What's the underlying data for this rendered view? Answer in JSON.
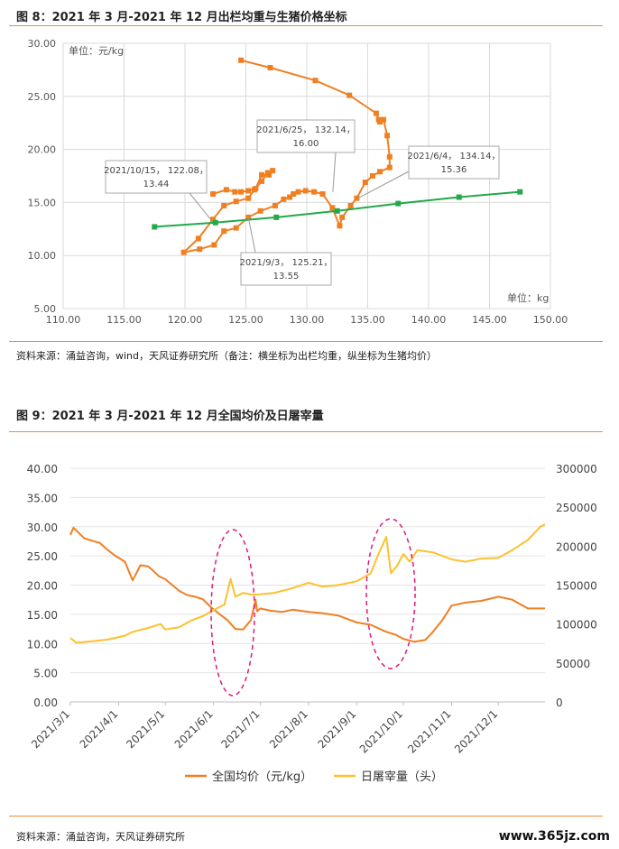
{
  "figure8": {
    "title": "图 8：2021 年 3 月-2021 年 12 月出栏均重与生猪价格坐标",
    "source": "资料来源：涌益咨询，wind，天风证券研究所（备注：横坐标为出栏均重，纵坐标为生猪均价）"
  },
  "figure9": {
    "title": "图 9：2021 年 3 月-2021 年 12 月全国均价及日屠宰量",
    "source": "资料来源：涌益咨询，天风证券研究所"
  },
  "watermark": "www.365jz.com",
  "colors": {
    "orange": "#f07f22",
    "green": "#22a94a",
    "yellow": "#fcc12e",
    "rule": "#e8903a",
    "annotation": "#e0197a"
  },
  "chart_data": [
    {
      "type": "scatter",
      "yunit_label": "单位：元/kg",
      "xunit_label": "单位：kg",
      "xlim": [
        110,
        150
      ],
      "ylim": [
        5,
        30
      ],
      "xticks": [
        "110.00",
        "115.00",
        "120.00",
        "125.00",
        "130.00",
        "135.00",
        "140.00",
        "145.00",
        "150.00"
      ],
      "yticks": [
        "5.00",
        "10.00",
        "15.00",
        "20.00",
        "25.00",
        "30.00"
      ],
      "grid": true,
      "series": [
        {
          "color": "orange",
          "x": [
            124.6,
            127.0,
            130.7,
            133.5,
            135.7,
            135.9,
            136.0,
            136.3,
            136.6,
            136.8,
            136.8,
            136.0,
            135.4,
            134.8,
            134.1,
            133.6,
            132.9,
            132.7,
            132.1,
            131.3,
            130.6,
            129.9,
            129.3,
            128.9,
            128.6,
            128.1,
            127.4,
            126.2,
            125.2,
            124.2,
            123.2,
            122.4,
            121.2,
            119.9,
            121.1,
            122.3,
            123.2,
            124.2,
            125.2,
            125.7,
            126.3,
            126.8,
            127.2,
            126.9,
            126.3,
            125.8,
            125.2,
            124.6,
            124.1,
            123.4,
            122.3
          ],
          "y": [
            28.4,
            27.7,
            26.5,
            25.1,
            23.4,
            22.8,
            22.6,
            22.8,
            21.3,
            19.3,
            18.3,
            17.9,
            17.5,
            16.9,
            15.4,
            14.7,
            13.6,
            12.8,
            14.5,
            15.8,
            16.0,
            16.1,
            16.0,
            15.8,
            15.5,
            15.3,
            14.7,
            14.2,
            13.6,
            12.6,
            12.3,
            11.0,
            10.6,
            10.3,
            11.6,
            13.4,
            14.7,
            15.1,
            15.4,
            16.2,
            17.0,
            17.8,
            18.0,
            17.6,
            17.6,
            16.3,
            16.1,
            16.0,
            16.0,
            16.2,
            15.8
          ]
        },
        {
          "color": "green",
          "x": [
            117.5,
            122.5,
            127.5,
            132.5,
            137.5,
            142.5,
            147.5
          ],
          "y": [
            12.7,
            13.1,
            13.6,
            14.2,
            14.9,
            15.5,
            16.0
          ]
        }
      ],
      "annotations": [
        {
          "lines": [
            "2021/6/25， 132.14，",
            "16.00"
          ]
        },
        {
          "lines": [
            "2021/6/4， 134.14，",
            "15.36"
          ]
        },
        {
          "lines": [
            "2021/10/15， 122.08，",
            "13.44"
          ]
        },
        {
          "lines": [
            "2021/9/3， 125.21，",
            "13.55"
          ]
        }
      ]
    },
    {
      "type": "line",
      "ylim": [
        0,
        40
      ],
      "y2lim": [
        0,
        300000
      ],
      "yticks": [
        "0.00",
        "5.00",
        "10.00",
        "15.00",
        "20.00",
        "25.00",
        "30.00",
        "35.00",
        "40.00"
      ],
      "y2ticks": [
        "0",
        "50000",
        "100000",
        "150000",
        "200000",
        "250000",
        "300000"
      ],
      "xticks": [
        "2021/3/1",
        "2021/4/1",
        "2021/5/1",
        "2021/6/1",
        "2021/7/1",
        "2021/8/1",
        "2021/9/1",
        "2021/10/1",
        "2021/11/1",
        "2021/12/1"
      ],
      "series": [
        {
          "name": "全国均价（元/kg）",
          "color": "orange",
          "axis": "left",
          "x": [
            "2021/3/1",
            "2021/3/3",
            "2021/3/10",
            "2021/3/15",
            "2021/3/20",
            "2021/3/25",
            "2021/3/30",
            "2021/4/5",
            "2021/4/10",
            "2021/4/15",
            "2021/4/20",
            "2021/4/23",
            "2021/4/27",
            "2021/5/1",
            "2021/5/10",
            "2021/5/15",
            "2021/5/20",
            "2021/5/25",
            "2021/5/30",
            "2021/6/5",
            "2021/6/10",
            "2021/6/15",
            "2021/6/20",
            "2021/6/25",
            "2021/6/28",
            "2021/6/29",
            "2021/7/1",
            "2021/7/8",
            "2021/7/15",
            "2021/7/22",
            "2021/8/1",
            "2021/8/10",
            "2021/8/20",
            "2021/9/1",
            "2021/9/10",
            "2021/9/20",
            "2021/9/26",
            "2021/10/1",
            "2021/10/8",
            "2021/10/15",
            "2021/10/20",
            "2021/10/26",
            "2021/11/1",
            "2021/11/10",
            "2021/11/20",
            "2021/12/1",
            "2021/12/10",
            "2021/12/20",
            "2021/12/31"
          ],
          "values": [
            28.6,
            29.8,
            28.0,
            27.6,
            27.2,
            26.0,
            25.0,
            24.0,
            20.8,
            23.4,
            23.2,
            22.5,
            21.5,
            21.0,
            19.0,
            18.3,
            18.0,
            17.6,
            16.3,
            15.0,
            14.0,
            12.5,
            12.4,
            14.0,
            17.5,
            15.5,
            16.0,
            15.6,
            15.4,
            15.8,
            15.4,
            15.2,
            14.8,
            13.6,
            13.2,
            12.0,
            11.5,
            10.8,
            10.3,
            10.6,
            12.0,
            14.0,
            16.5,
            17.0,
            17.3,
            18.0,
            17.5,
            16.0,
            16.0
          ]
        },
        {
          "name": "日屠宰量（头）",
          "color": "yellow",
          "axis": "right",
          "x": [
            "2021/3/1",
            "2021/3/5",
            "2021/3/15",
            "2021/3/25",
            "2021/4/5",
            "2021/4/10",
            "2021/4/20",
            "2021/4/28",
            "2021/5/1",
            "2021/5/10",
            "2021/5/18",
            "2021/5/25",
            "2021/6/1",
            "2021/6/8",
            "2021/6/12",
            "2021/6/15",
            "2021/6/20",
            "2021/6/25",
            "2021/6/30",
            "2021/7/10",
            "2021/7/20",
            "2021/8/1",
            "2021/8/10",
            "2021/8/20",
            "2021/9/1",
            "2021/9/10",
            "2021/9/15",
            "2021/9/20",
            "2021/9/23",
            "2021/9/27",
            "2021/10/1",
            "2021/10/5",
            "2021/10/10",
            "2021/10/20",
            "2021/11/1",
            "2021/11/10",
            "2021/11/20",
            "2021/12/1",
            "2021/12/10",
            "2021/12/20",
            "2021/12/28",
            "2021/12/31"
          ],
          "values": [
            82000,
            76000,
            78000,
            80000,
            85000,
            90000,
            95000,
            100000,
            93000,
            96000,
            105000,
            110000,
            118000,
            125000,
            158000,
            135000,
            140000,
            138000,
            138000,
            140000,
            145000,
            153000,
            148000,
            150000,
            155000,
            165000,
            190000,
            212000,
            165000,
            175000,
            190000,
            180000,
            195000,
            192000,
            183000,
            180000,
            184000,
            185000,
            195000,
            208000,
            225000,
            228000
          ]
        }
      ]
    }
  ]
}
